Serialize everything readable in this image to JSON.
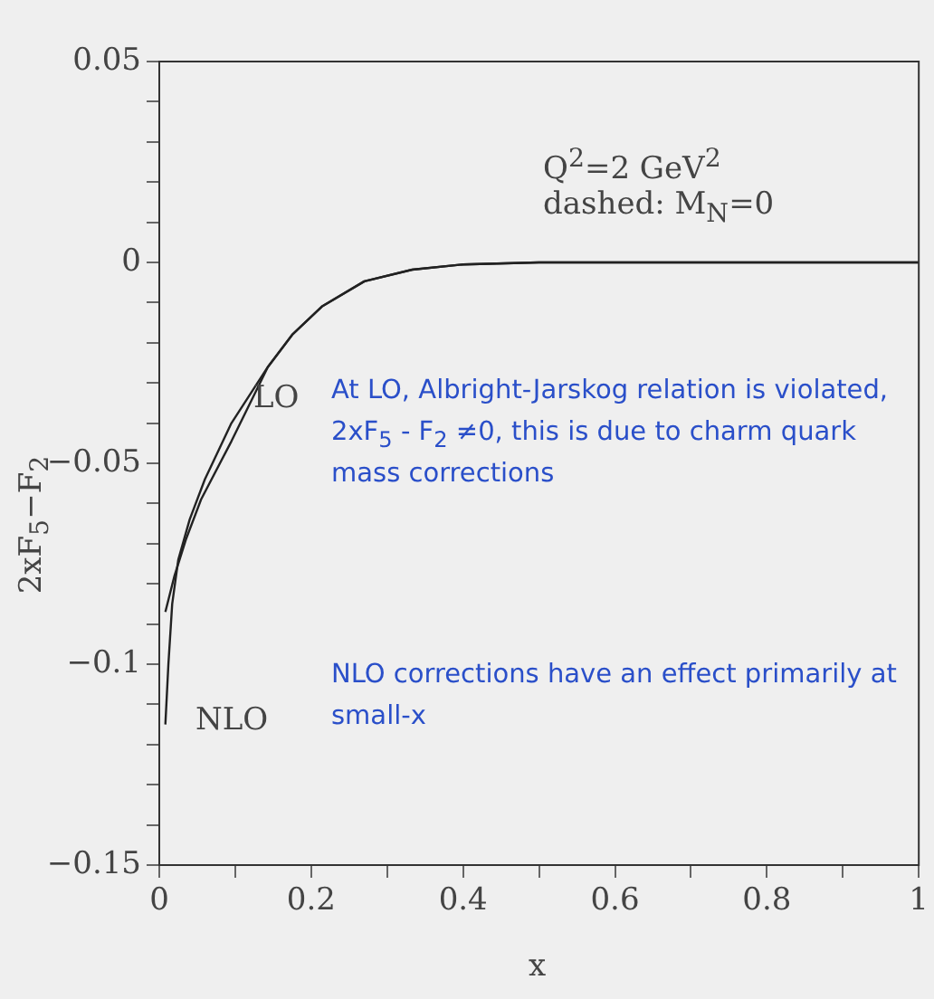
{
  "chart_data": {
    "type": "line",
    "xlabel": "x",
    "ylabel": "2xF$_{5}$−F$_{2}$",
    "xlim": [
      0,
      1
    ],
    "ylim": [
      -0.15,
      0.05
    ],
    "xticks": [
      0,
      {
        "value": 0.1,
        "label": null
      },
      0.2,
      {
        "value": 0.3,
        "label": null
      },
      0.4,
      {
        "value": 0.5,
        "label": null
      },
      0.6,
      {
        "value": 0.7,
        "label": null
      },
      0.8,
      {
        "value": 0.9,
        "label": null
      },
      1
    ],
    "yticks": [
      {
        "value": -0.15,
        "label": "−0.15"
      },
      {
        "value": -0.14,
        "label": null
      },
      {
        "value": -0.13,
        "label": null
      },
      {
        "value": -0.12,
        "label": null
      },
      {
        "value": -0.11,
        "label": null
      },
      {
        "value": -0.1,
        "label": "−0.1"
      },
      {
        "value": -0.09,
        "label": null
      },
      {
        "value": -0.08,
        "label": null
      },
      {
        "value": -0.07,
        "label": null
      },
      {
        "value": -0.06,
        "label": null
      },
      {
        "value": -0.05,
        "label": "−0.05"
      },
      {
        "value": -0.04,
        "label": null
      },
      {
        "value": -0.03,
        "label": null
      },
      {
        "value": -0.02,
        "label": null
      },
      {
        "value": -0.01,
        "label": null
      },
      0,
      {
        "value": 0.01,
        "label": null
      },
      {
        "value": 0.02,
        "label": null
      },
      {
        "value": 0.03,
        "label": null
      },
      {
        "value": 0.04,
        "label": null
      },
      0.05
    ],
    "grid": false,
    "legend": false,
    "marker": "none",
    "line_style": "solid",
    "series": [
      {
        "name": "LO",
        "color": "#222222",
        "x": [
          0.008,
          0.02,
          0.035,
          0.055,
          0.095,
          0.143,
          0.175,
          0.214,
          0.27,
          0.333,
          0.4,
          0.5,
          1
        ],
        "values": [
          -0.087,
          -0.078,
          -0.069,
          -0.059,
          -0.0445,
          -0.026,
          -0.018,
          -0.011,
          -0.0047,
          -0.0018,
          -0.0005,
          0,
          0
        ]
      },
      {
        "name": "NLO",
        "color": "#222222",
        "x": [
          0.008,
          0.012,
          0.017,
          0.025,
          0.04,
          0.06,
          0.095,
          0.143,
          0.175,
          0.214,
          0.27,
          0.333,
          0.4,
          0.5,
          1
        ],
        "values": [
          -0.115,
          -0.1,
          -0.085,
          -0.074,
          -0.064,
          -0.054,
          -0.04,
          -0.026,
          -0.018,
          -0.011,
          -0.0047,
          -0.0018,
          -0.0005,
          0,
          0
        ]
      }
    ],
    "annotations": [
      "Q$^{2}$=2 GeV$^{2}$",
      "dashed: M$_{N}$=0",
      "At LO, Albright-Jarskog relation is violated, 2xF$_{5}$ - F$_{2}$ ≠0, this is due to charm quark mass corrections",
      "NLO corrections have an effect primarily at small-x"
    ]
  }
}
